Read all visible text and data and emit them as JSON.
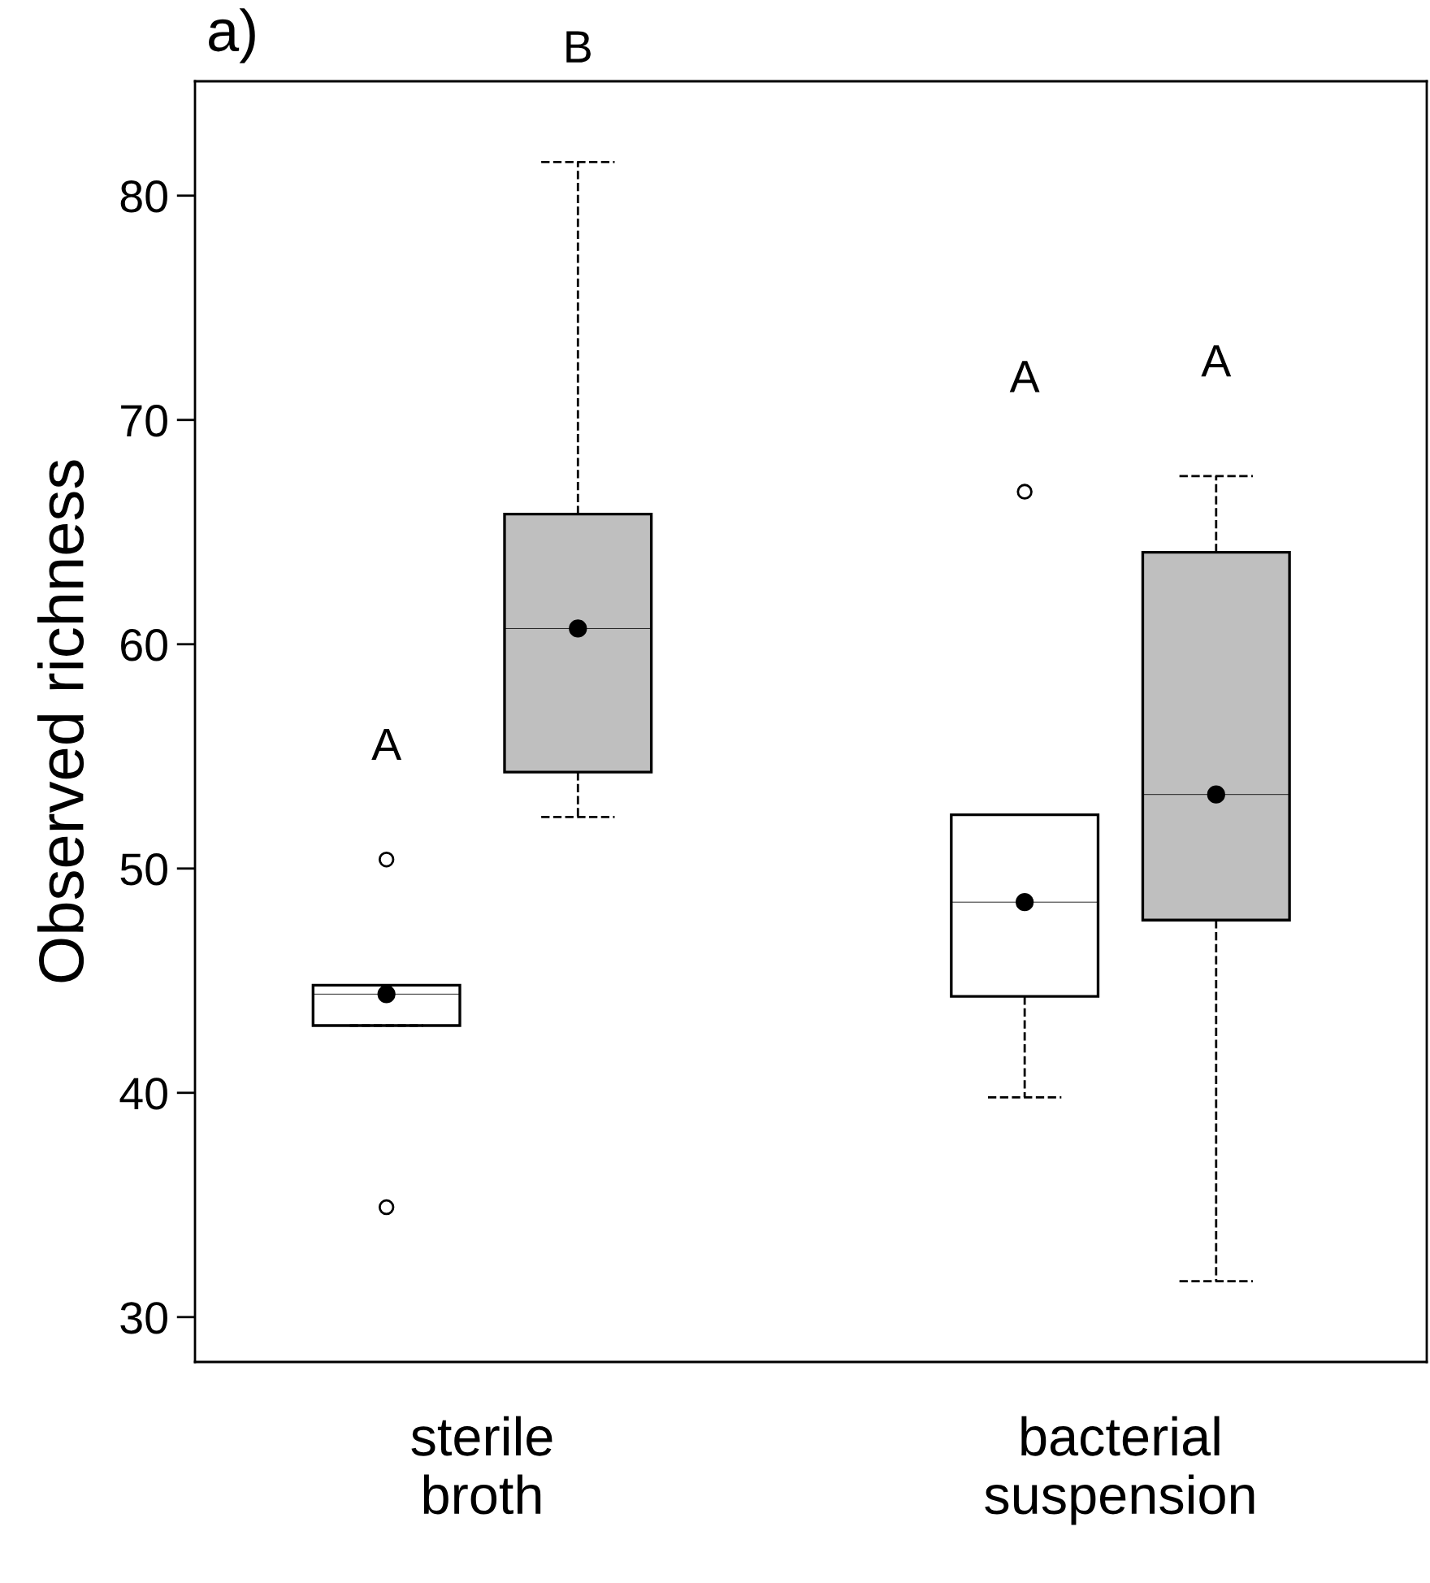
{
  "chart_data": {
    "type": "box",
    "title": "a)",
    "ylabel": "Observed richness",
    "categories": [
      "sterile\nbroth",
      "bacterial\nsuspension"
    ],
    "ylim": [
      28.0,
      85.1
    ],
    "yticks": [
      30,
      40,
      50,
      60,
      70,
      80
    ],
    "grid": false,
    "line_style": "dashed",
    "series": [
      {
        "color": "#ffffff",
        "boxes": [
          {
            "low": 43.0,
            "q1": 43.0,
            "median": 44.4,
            "q3": 44.8,
            "high": 44.8,
            "mean": 44.4,
            "outliers": [
              50.4,
              34.9
            ]
          },
          {
            "low": 39.8,
            "q1": 44.3,
            "median": 48.5,
            "q3": 52.4,
            "high": 52.4,
            "mean": 48.5,
            "outliers": [
              66.8
            ]
          }
        ]
      },
      {
        "color": "#bfbfbf",
        "boxes": [
          {
            "low": 52.3,
            "q1": 54.3,
            "median": 60.7,
            "q3": 65.8,
            "high": 81.5,
            "mean": 60.7
          },
          {
            "low": 31.6,
            "q1": 47.7,
            "median": 53.3,
            "q3": 64.1,
            "high": 67.5,
            "mean": 53.3
          }
        ]
      }
    ],
    "annotations": [
      "A",
      "B",
      "A",
      "A"
    ]
  }
}
